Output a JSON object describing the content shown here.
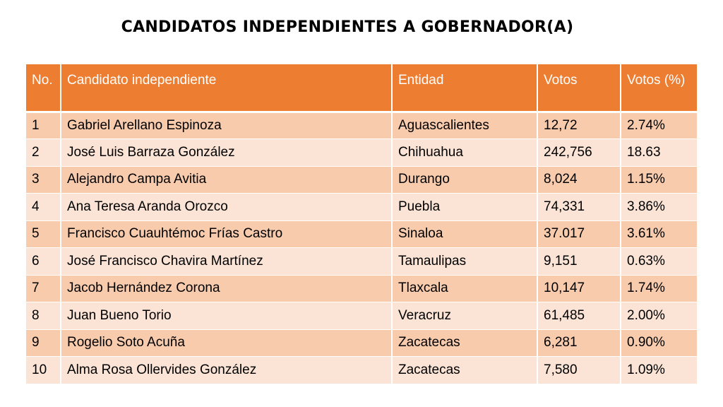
{
  "title": "CANDIDATOS INDEPENDIENTES A GOBERNADOR(A)",
  "table": {
    "headers": {
      "no": "No.",
      "candidate": "Candidato independiente",
      "entity": "Entidad",
      "votes": "Votos",
      "pct": "Votos (%)"
    },
    "rows": [
      {
        "no": "1",
        "candidate": "Gabriel Arellano Espinoza",
        "entity": "Aguascalientes",
        "votes": "12,72",
        "pct": "2.74%"
      },
      {
        "no": "2",
        "candidate": "José Luis Barraza González",
        "entity": "Chihuahua",
        "votes": "242,756",
        "pct": "18.63"
      },
      {
        "no": "3",
        "candidate": "Alejandro Campa Avitia",
        "entity": "Durango",
        "votes": "8,024",
        "pct": "1.15%"
      },
      {
        "no": "4",
        "candidate": "Ana Teresa Aranda Orozco",
        "entity": "Puebla",
        "votes": "74,331",
        "pct": "3.86%"
      },
      {
        "no": "5",
        "candidate": "Francisco Cuauhtémoc Frías Castro",
        "entity": "Sinaloa",
        "votes": "37.017",
        "pct": "3.61%"
      },
      {
        "no": "6",
        "candidate": "José Francisco Chavira Martínez",
        "entity": "Tamaulipas",
        "votes": "9,151",
        "pct": "0.63%"
      },
      {
        "no": "7",
        "candidate": "Jacob Hernández Corona",
        "entity": "Tlaxcala",
        "votes": "10,147",
        "pct": "1.74%"
      },
      {
        "no": "8",
        "candidate": "Juan Bueno Torio",
        "entity": "Veracruz",
        "votes": "61,485",
        "pct": "2.00%"
      },
      {
        "no": "9",
        "candidate": "Rogelio Soto Acuña",
        "entity": "Zacatecas",
        "votes": "6,281",
        "pct": "0.90%"
      },
      {
        "no": "10",
        "candidate": "Alma Rosa Ollervides González",
        "entity": "Zacatecas",
        "votes": "7,580",
        "pct": "1.09%"
      }
    ]
  },
  "colors": {
    "header_bg": "#ed7d31",
    "row_dark": "#f8cbad",
    "row_light": "#fbe4d5"
  }
}
